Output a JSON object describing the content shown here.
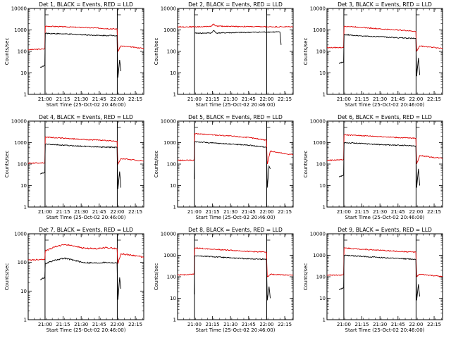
{
  "colors": {
    "events": "#000000",
    "lld": "#e00000",
    "axes": "#000000",
    "background": "#ffffff"
  },
  "common": {
    "ylabel": "Counts/sec",
    "xlabel": "Start Time (25-Oct-02 20:46:00)",
    "x_tick_labels": [
      "21:00",
      "21:15",
      "21:30",
      "21:45",
      "22:00",
      "22:15"
    ],
    "y_tick_labels": [
      "1",
      "10",
      "100",
      "1000",
      "10000"
    ]
  },
  "chart_data": [
    {
      "type": "line",
      "title": "Det 1, BLACK = Events, RED = LLD",
      "xlabel": "Start Time (25-Oct-02 20:46:00)",
      "ylabel": "Counts/sec",
      "x_range_minutes": [
        0,
        96
      ],
      "ylim": [
        1,
        10000
      ],
      "yscale": "log",
      "x_ticks_minutes": [
        14,
        29,
        44,
        59,
        74,
        89
      ],
      "markers_minutes": [
        14,
        74
      ],
      "series": [
        {
          "name": "RED = LLD",
          "points": [
            [
              0,
              120
            ],
            [
              7,
              125
            ],
            [
              13.8,
              130
            ],
            [
              14.2,
              1500
            ],
            [
              30,
              1400
            ],
            [
              45,
              1300
            ],
            [
              60,
              1200
            ],
            [
              73.8,
              1100
            ],
            [
              74.5,
              100
            ],
            [
              77,
              180
            ],
            [
              90,
              150
            ],
            [
              96,
              140
            ]
          ]
        },
        {
          "name": "BLACK = Events",
          "points": [
            [
              10,
              18
            ],
            [
              13.8,
              22
            ],
            [
              14.2,
              700
            ],
            [
              30,
              650
            ],
            [
              45,
              600
            ],
            [
              60,
              550
            ],
            [
              73.8,
              550
            ],
            [
              74.5,
              6
            ],
            [
              76,
              40
            ],
            [
              77,
              12
            ]
          ]
        }
      ]
    },
    {
      "type": "line",
      "title": "Det 2, BLACK = Events, RED = LLD",
      "xlabel": "Start Time (25-Oct-02 20:46:00)",
      "ylabel": "Counts/sec",
      "x_range_minutes": [
        0,
        96
      ],
      "ylim": [
        1,
        10000
      ],
      "yscale": "log",
      "x_ticks_minutes": [
        14,
        29,
        44,
        59,
        74,
        89
      ],
      "markers_minutes": [
        14,
        74
      ],
      "series": [
        {
          "name": "RED = LLD",
          "points": [
            [
              0,
              1400
            ],
            [
              20,
              1400
            ],
            [
              28,
              1500
            ],
            [
              30,
              1900
            ],
            [
              32,
              1500
            ],
            [
              50,
              1450
            ],
            [
              74,
              1400
            ],
            [
              96,
              1400
            ]
          ]
        },
        {
          "name": "BLACK = Events",
          "points": [
            [
              14.5,
              700
            ],
            [
              28,
              720
            ],
            [
              30,
              950
            ],
            [
              32,
              720
            ],
            [
              50,
              750
            ],
            [
              74,
              800
            ],
            [
              85,
              800
            ],
            [
              86,
              200
            ]
          ]
        }
      ]
    },
    {
      "type": "line",
      "title": "Det 3, BLACK = Events, RED = LLD",
      "xlabel": "Start Time (25-Oct-02 20:46:00)",
      "ylabel": "Counts/sec",
      "x_range_minutes": [
        0,
        96
      ],
      "ylim": [
        1,
        10000
      ],
      "yscale": "log",
      "x_ticks_minutes": [
        14,
        29,
        44,
        59,
        74,
        89
      ],
      "markers_minutes": [
        14,
        74
      ],
      "series": [
        {
          "name": "RED = LLD",
          "points": [
            [
              0,
              150
            ],
            [
              13.8,
              150
            ],
            [
              14.2,
              1500
            ],
            [
              30,
              1300
            ],
            [
              45,
              1100
            ],
            [
              60,
              1000
            ],
            [
              73.8,
              850
            ],
            [
              74.5,
              100
            ],
            [
              77,
              180
            ],
            [
              90,
              150
            ],
            [
              96,
              140
            ]
          ]
        },
        {
          "name": "BLACK = Events",
          "points": [
            [
              10,
              28
            ],
            [
              13.8,
              32
            ],
            [
              14.2,
              600
            ],
            [
              30,
              520
            ],
            [
              45,
              480
            ],
            [
              60,
              430
            ],
            [
              73.8,
              400
            ],
            [
              74.5,
              7
            ],
            [
              76,
              50
            ],
            [
              77,
              8
            ]
          ]
        }
      ]
    },
    {
      "type": "line",
      "title": "Det 4, BLACK = Events, RED = LLD",
      "xlabel": "Start Time (25-Oct-02 20:46:00)",
      "ylabel": "Counts/sec",
      "x_range_minutes": [
        0,
        96
      ],
      "ylim": [
        1,
        10000
      ],
      "yscale": "log",
      "x_ticks_minutes": [
        14,
        29,
        44,
        59,
        74,
        89
      ],
      "markers_minutes": [
        14,
        74
      ],
      "series": [
        {
          "name": "RED = LLD",
          "points": [
            [
              0,
              110
            ],
            [
              13.8,
              115
            ],
            [
              14.2,
              1800
            ],
            [
              30,
              1600
            ],
            [
              45,
              1400
            ],
            [
              60,
              1300
            ],
            [
              73.8,
              1150
            ],
            [
              74.5,
              100
            ],
            [
              77,
              180
            ],
            [
              90,
              150
            ],
            [
              96,
              140
            ]
          ]
        },
        {
          "name": "BLACK = Events",
          "points": [
            [
              10,
              35
            ],
            [
              13.8,
              40
            ],
            [
              14.2,
              850
            ],
            [
              30,
              750
            ],
            [
              45,
              680
            ],
            [
              60,
              620
            ],
            [
              73.8,
              600
            ],
            [
              74.5,
              7
            ],
            [
              76,
              45
            ],
            [
              77,
              8
            ]
          ]
        }
      ]
    },
    {
      "type": "line",
      "title": "Det 5, BLACK = Events, RED = LLD",
      "xlabel": "Start Time (25-Oct-02 20:46:00)",
      "ylabel": "Counts/sec",
      "x_range_minutes": [
        0,
        96
      ],
      "ylim": [
        1,
        10000
      ],
      "yscale": "log",
      "x_ticks_minutes": [
        14,
        29,
        44,
        59,
        74,
        89
      ],
      "markers_minutes": [
        14,
        74
      ],
      "series": [
        {
          "name": "RED = LLD",
          "points": [
            [
              0,
              150
            ],
            [
              13.8,
              150
            ],
            [
              14.2,
              2600
            ],
            [
              30,
              2300
            ],
            [
              45,
              2000
            ],
            [
              60,
              1700
            ],
            [
              73.8,
              1300
            ],
            [
              74.5,
              100
            ],
            [
              77,
              400
            ],
            [
              90,
              300
            ],
            [
              96,
              280
            ]
          ]
        },
        {
          "name": "BLACK = Events",
          "points": [
            [
              13.8,
              20
            ],
            [
              14.2,
              1100
            ],
            [
              30,
              950
            ],
            [
              45,
              850
            ],
            [
              60,
              750
            ],
            [
              73.8,
              600
            ],
            [
              74.5,
              8
            ],
            [
              76,
              80
            ],
            [
              77,
              60
            ]
          ]
        }
      ]
    },
    {
      "type": "line",
      "title": "Det 6, BLACK = Events, RED = LLD",
      "xlabel": "Start Time (25-Oct-02 20:46:00)",
      "ylabel": "Counts/sec",
      "x_range_minutes": [
        0,
        96
      ],
      "ylim": [
        1,
        10000
      ],
      "yscale": "log",
      "x_ticks_minutes": [
        14,
        29,
        44,
        59,
        74,
        89
      ],
      "markers_minutes": [
        14,
        74
      ],
      "series": [
        {
          "name": "RED = LLD",
          "points": [
            [
              0,
              150
            ],
            [
              13.8,
              160
            ],
            [
              14.2,
              2300
            ],
            [
              30,
              2100
            ],
            [
              45,
              1900
            ],
            [
              60,
              1700
            ],
            [
              73.8,
              1600
            ],
            [
              74.5,
              100
            ],
            [
              77,
              250
            ],
            [
              90,
              200
            ],
            [
              96,
              190
            ]
          ]
        },
        {
          "name": "BLACK = Events",
          "points": [
            [
              10,
              25
            ],
            [
              13.8,
              30
            ],
            [
              14.2,
              1000
            ],
            [
              30,
              900
            ],
            [
              45,
              800
            ],
            [
              60,
              750
            ],
            [
              73.8,
              700
            ],
            [
              74.5,
              8
            ],
            [
              76,
              60
            ],
            [
              77,
              10
            ]
          ]
        }
      ]
    },
    {
      "type": "line",
      "title": "Det 7, BLACK = Events, RED = LLD",
      "xlabel": "Start Time (25-Oct-02 20:46:00)",
      "ylabel": "Counts/sec",
      "x_range_minutes": [
        0,
        96
      ],
      "ylim": [
        1,
        1000
      ],
      "yscale": "log",
      "x_ticks_minutes": [
        14,
        29,
        44,
        59,
        74,
        89
      ],
      "markers_minutes": [
        14,
        74
      ],
      "series": [
        {
          "name": "RED = LLD",
          "points": [
            [
              0,
              120
            ],
            [
              13.8,
              130
            ],
            [
              14.2,
              250
            ],
            [
              22,
              350
            ],
            [
              30,
              420
            ],
            [
              38,
              380
            ],
            [
              45,
              320
            ],
            [
              55,
              300
            ],
            [
              65,
              330
            ],
            [
              73.8,
              300
            ],
            [
              74.5,
              90
            ],
            [
              77,
              200
            ],
            [
              90,
              170
            ],
            [
              96,
              150
            ]
          ]
        },
        {
          "name": "BLACK = Events",
          "points": [
            [
              10,
              25
            ],
            [
              13.8,
              30
            ],
            [
              14.2,
              90
            ],
            [
              22,
              120
            ],
            [
              30,
              140
            ],
            [
              38,
              120
            ],
            [
              45,
              100
            ],
            [
              55,
              95
            ],
            [
              65,
              100
            ],
            [
              73.8,
              95
            ],
            [
              74.5,
              5
            ],
            [
              76,
              30
            ],
            [
              77,
              12
            ]
          ]
        }
      ]
    },
    {
      "type": "line",
      "title": "Det 8, BLACK = Events, RED = LLD",
      "xlabel": "Start Time (25-Oct-02 20:46:00)",
      "ylabel": "Counts/sec",
      "x_range_minutes": [
        0,
        96
      ],
      "ylim": [
        1,
        10000
      ],
      "yscale": "log",
      "x_ticks_minutes": [
        14,
        29,
        44,
        59,
        74,
        89
      ],
      "markers_minutes": [
        14,
        74
      ],
      "series": [
        {
          "name": "RED = LLD",
          "points": [
            [
              0,
              120
            ],
            [
              13.8,
              130
            ],
            [
              14.2,
              2200
            ],
            [
              30,
              1900
            ],
            [
              45,
              1700
            ],
            [
              60,
              1500
            ],
            [
              73.8,
              1400
            ],
            [
              74.5,
              100
            ],
            [
              77,
              130
            ],
            [
              90,
              120
            ],
            [
              96,
              115
            ]
          ]
        },
        {
          "name": "BLACK = Events",
          "points": [
            [
              13.8,
              15
            ],
            [
              14.2,
              950
            ],
            [
              30,
              850
            ],
            [
              45,
              750
            ],
            [
              60,
              680
            ],
            [
              73.8,
              650
            ],
            [
              74.5,
              8
            ],
            [
              76,
              35
            ],
            [
              77,
              10
            ]
          ]
        }
      ]
    },
    {
      "type": "line",
      "title": "Det 9, BLACK = Events, RED = LLD",
      "xlabel": "Start Time (25-Oct-02 20:46:00)",
      "ylabel": "Counts/sec",
      "x_range_minutes": [
        0,
        96
      ],
      "ylim": [
        1,
        10000
      ],
      "yscale": "log",
      "x_ticks_minutes": [
        14,
        29,
        44,
        59,
        74,
        89
      ],
      "markers_minutes": [
        14,
        74
      ],
      "series": [
        {
          "name": "RED = LLD",
          "points": [
            [
              0,
              120
            ],
            [
              13.8,
              120
            ],
            [
              14.2,
              2200
            ],
            [
              30,
              1900
            ],
            [
              45,
              1700
            ],
            [
              60,
              1500
            ],
            [
              73.8,
              1400
            ],
            [
              74.5,
              100
            ],
            [
              77,
              130
            ],
            [
              90,
              110
            ],
            [
              96,
              100
            ]
          ]
        },
        {
          "name": "BLACK = Events",
          "points": [
            [
              10,
              25
            ],
            [
              13.8,
              30
            ],
            [
              14.2,
              1000
            ],
            [
              30,
              880
            ],
            [
              45,
              780
            ],
            [
              60,
              700
            ],
            [
              73.8,
              650
            ],
            [
              74.5,
              8
            ],
            [
              76,
              45
            ],
            [
              77,
              12
            ]
          ]
        }
      ]
    }
  ]
}
